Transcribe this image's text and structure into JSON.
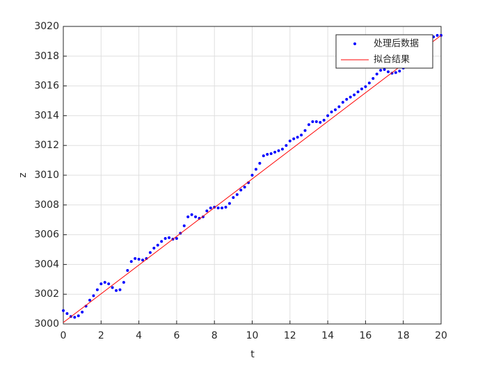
{
  "chart_data": {
    "type": "scatter",
    "xlabel": "t",
    "ylabel": "z",
    "xlim": [
      0,
      20
    ],
    "ylim": [
      3000,
      3020
    ],
    "xticks": [
      0,
      2,
      4,
      6,
      8,
      10,
      12,
      14,
      16,
      18,
      20
    ],
    "yticks": [
      3000,
      3002,
      3004,
      3006,
      3008,
      3010,
      3012,
      3014,
      3016,
      3018,
      3020
    ],
    "grid": true,
    "legend": "top-right",
    "series": [
      {
        "name": "处理后数据",
        "color": "#0000ff",
        "mode": "markers",
        "x": [
          0,
          0.2,
          0.4,
          0.6,
          0.8,
          1,
          1.2,
          1.4,
          1.6,
          1.8,
          2,
          2.2,
          2.4,
          2.6,
          2.8,
          3,
          3.2,
          3.4,
          3.6,
          3.8,
          4,
          4.2,
          4.4,
          4.6,
          4.8,
          5,
          5.2,
          5.4,
          5.6,
          5.8,
          6,
          6.2,
          6.4,
          6.6,
          6.8,
          7,
          7.2,
          7.4,
          7.6,
          7.8,
          8,
          8.2,
          8.4,
          8.6,
          8.8,
          9,
          9.2,
          9.4,
          9.6,
          9.8,
          10,
          10.2,
          10.4,
          10.6,
          10.8,
          11,
          11.2,
          11.4,
          11.6,
          11.8,
          12,
          12.2,
          12.4,
          12.6,
          12.8,
          13,
          13.2,
          13.4,
          13.6,
          13.8,
          14,
          14.2,
          14.4,
          14.6,
          14.8,
          15,
          15.2,
          15.4,
          15.6,
          15.8,
          16,
          16.2,
          16.4,
          16.6,
          16.8,
          17,
          17.2,
          17.4,
          17.6,
          17.8,
          18,
          19.6,
          19.8,
          20
        ],
        "values": [
          3000.9,
          3000.7,
          3000.5,
          3000.45,
          3000.55,
          3000.8,
          3001.2,
          3001.6,
          3001.9,
          3002.3,
          3002.7,
          3002.8,
          3002.7,
          3002.45,
          3002.25,
          3002.3,
          3002.8,
          3003.6,
          3004.2,
          3004.4,
          3004.35,
          3004.3,
          3004.4,
          3004.8,
          3005.1,
          3005.3,
          3005.55,
          3005.75,
          3005.8,
          3005.7,
          3005.75,
          3006.1,
          3006.6,
          3007.2,
          3007.35,
          3007.2,
          3007.1,
          3007.2,
          3007.6,
          3007.8,
          3007.85,
          3007.8,
          3007.8,
          3007.85,
          3008.1,
          3008.5,
          3008.7,
          3009,
          3009.2,
          3009.5,
          3010,
          3010.4,
          3010.8,
          3011.3,
          3011.4,
          3011.45,
          3011.55,
          3011.65,
          3011.75,
          3012,
          3012.3,
          3012.45,
          3012.55,
          3012.7,
          3013,
          3013.4,
          3013.6,
          3013.6,
          3013.55,
          3013.7,
          3014,
          3014.25,
          3014.4,
          3014.6,
          3014.9,
          3015.1,
          3015.25,
          3015.4,
          3015.6,
          3015.8,
          3015.95,
          3016.2,
          3016.5,
          3016.8,
          3017.05,
          3017.1,
          3016.95,
          3016.85,
          3016.9,
          3017,
          3017.2,
          3019.3,
          3019.4,
          3019.4
        ]
      },
      {
        "name": "拟合结果",
        "color": "#ff0000",
        "mode": "line",
        "x": [
          0,
          20
        ],
        "values": [
          3000.1,
          3019.4
        ]
      }
    ]
  }
}
